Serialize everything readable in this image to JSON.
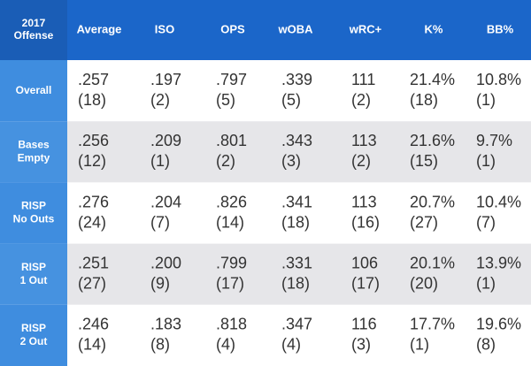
{
  "table": {
    "corner": [
      "2017",
      "Offense"
    ],
    "columns": [
      "Average",
      "ISO",
      "OPS",
      "wOBA",
      "wRC+",
      "K%",
      "BB%"
    ],
    "rows": [
      {
        "label": [
          "Overall"
        ],
        "cells": [
          [
            ".257",
            "(18)"
          ],
          [
            ".197",
            "(2)"
          ],
          [
            ".797",
            "(5)"
          ],
          [
            ".339",
            "(5)"
          ],
          [
            "111",
            "(2)"
          ],
          [
            "21.4%",
            "(18)"
          ],
          [
            "10.8%",
            "(1)"
          ]
        ]
      },
      {
        "label": [
          "Bases",
          "Empty"
        ],
        "cells": [
          [
            ".256",
            "(12)"
          ],
          [
            ".209",
            "(1)"
          ],
          [
            ".801",
            "(2)"
          ],
          [
            ".343",
            "(3)"
          ],
          [
            "113",
            "(2)"
          ],
          [
            "21.6%",
            "(15)"
          ],
          [
            "9.7%",
            "(1)"
          ]
        ]
      },
      {
        "label": [
          "RISP",
          "No Outs"
        ],
        "cells": [
          [
            ".276",
            "(24)"
          ],
          [
            ".204",
            "(7)"
          ],
          [
            ".826",
            "(14)"
          ],
          [
            ".341",
            "(18)"
          ],
          [
            "113",
            "(16)"
          ],
          [
            "20.7%",
            "(27)"
          ],
          [
            "10.4%",
            "(7)"
          ]
        ]
      },
      {
        "label": [
          "RISP",
          "1 Out"
        ],
        "cells": [
          [
            ".251",
            "(27)"
          ],
          [
            ".200",
            "(9)"
          ],
          [
            ".799",
            "(17)"
          ],
          [
            ".331",
            "(18)"
          ],
          [
            "106",
            "(17)"
          ],
          [
            "20.1%",
            "(20)"
          ],
          [
            "13.9%",
            "(1)"
          ]
        ]
      },
      {
        "label": [
          "RISP",
          "2 Out"
        ],
        "cells": [
          [
            ".246",
            "(14)"
          ],
          [
            ".183",
            "(8)"
          ],
          [
            ".818",
            "(4)"
          ],
          [
            ".347",
            "(4)"
          ],
          [
            "116",
            "(3)"
          ],
          [
            "17.7%",
            "(1)"
          ],
          [
            "19.6%",
            "(8)"
          ]
        ]
      }
    ]
  }
}
